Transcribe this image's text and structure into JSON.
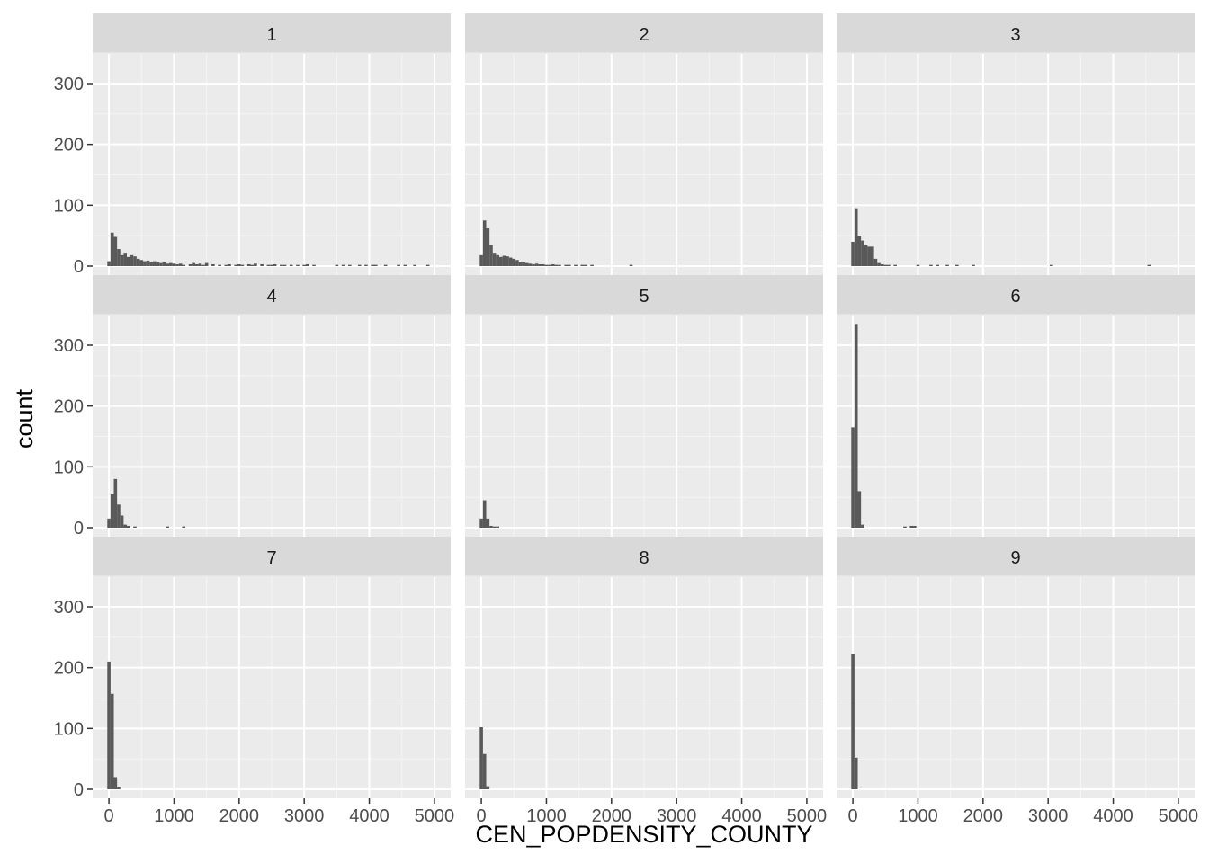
{
  "chart_data": {
    "type": "bar",
    "subtype": "faceted-histogram",
    "xlabel": "CEN_POPDENSITY_COUNTY",
    "ylabel": "count",
    "xlim": [
      -250,
      5250
    ],
    "ylim": [
      0,
      400
    ],
    "x_ticks": [
      0,
      1000,
      2000,
      3000,
      4000,
      5000
    ],
    "x_tick_labels": [
      "0",
      "1000",
      "2000",
      "3000",
      "4000",
      "5000"
    ],
    "y_ticks": [
      0,
      100,
      200,
      300
    ],
    "y_tick_labels": [
      "0",
      "100",
      "200",
      "300"
    ],
    "bin_width": 50,
    "grid": true,
    "colors": {
      "panel_bg": "#ebebeb",
      "grid_major": "#ffffff",
      "strip_bg": "#d9d9d9",
      "bar_fill": "#595959"
    },
    "facets": [
      {
        "label": "1",
        "bins": [
          [
            0,
            8
          ],
          [
            50,
            55
          ],
          [
            100,
            48
          ],
          [
            150,
            28
          ],
          [
            200,
            18
          ],
          [
            250,
            22
          ],
          [
            300,
            15
          ],
          [
            350,
            18
          ],
          [
            400,
            16
          ],
          [
            450,
            12
          ],
          [
            500,
            10
          ],
          [
            550,
            8
          ],
          [
            600,
            9
          ],
          [
            650,
            7
          ],
          [
            700,
            8
          ],
          [
            750,
            6
          ],
          [
            800,
            5
          ],
          [
            850,
            6
          ],
          [
            900,
            4
          ],
          [
            950,
            5
          ],
          [
            1000,
            4
          ],
          [
            1050,
            3
          ],
          [
            1100,
            4
          ],
          [
            1150,
            2
          ],
          [
            1250,
            3
          ],
          [
            1300,
            5
          ],
          [
            1350,
            3
          ],
          [
            1400,
            4
          ],
          [
            1450,
            2
          ],
          [
            1500,
            5
          ],
          [
            1600,
            3
          ],
          [
            1700,
            2
          ],
          [
            1800,
            2
          ],
          [
            1850,
            3
          ],
          [
            1950,
            2
          ],
          [
            2000,
            3
          ],
          [
            2050,
            2
          ],
          [
            2150,
            3
          ],
          [
            2200,
            2
          ],
          [
            2250,
            4
          ],
          [
            2350,
            3
          ],
          [
            2450,
            2
          ],
          [
            2500,
            2
          ],
          [
            2550,
            3
          ],
          [
            2650,
            2
          ],
          [
            2700,
            2
          ],
          [
            2800,
            2
          ],
          [
            2900,
            2
          ],
          [
            3000,
            2
          ],
          [
            3050,
            3
          ],
          [
            3150,
            2
          ],
          [
            3500,
            2
          ],
          [
            3600,
            2
          ],
          [
            3700,
            2
          ],
          [
            3850,
            2
          ],
          [
            3950,
            2
          ],
          [
            4050,
            2
          ],
          [
            4100,
            2
          ],
          [
            4250,
            2
          ],
          [
            4450,
            2
          ],
          [
            4550,
            2
          ],
          [
            4700,
            2
          ],
          [
            4900,
            2
          ]
        ]
      },
      {
        "label": "2",
        "bins": [
          [
            0,
            18
          ],
          [
            50,
            75
          ],
          [
            100,
            62
          ],
          [
            150,
            35
          ],
          [
            200,
            22
          ],
          [
            250,
            18
          ],
          [
            300,
            15
          ],
          [
            350,
            17
          ],
          [
            400,
            16
          ],
          [
            450,
            14
          ],
          [
            500,
            12
          ],
          [
            550,
            10
          ],
          [
            600,
            7
          ],
          [
            650,
            6
          ],
          [
            700,
            5
          ],
          [
            750,
            4
          ],
          [
            800,
            3
          ],
          [
            850,
            4
          ],
          [
            900,
            3
          ],
          [
            950,
            3
          ],
          [
            1000,
            2
          ],
          [
            1050,
            2
          ],
          [
            1100,
            3
          ],
          [
            1150,
            2
          ],
          [
            1200,
            2
          ],
          [
            1300,
            2
          ],
          [
            1350,
            2
          ],
          [
            1450,
            2
          ],
          [
            1550,
            2
          ],
          [
            1600,
            2
          ],
          [
            1700,
            2
          ],
          [
            2300,
            2
          ]
        ]
      },
      {
        "label": "3",
        "bins": [
          [
            0,
            40
          ],
          [
            50,
            95
          ],
          [
            100,
            50
          ],
          [
            150,
            42
          ],
          [
            200,
            35
          ],
          [
            250,
            32
          ],
          [
            300,
            32
          ],
          [
            350,
            12
          ],
          [
            400,
            5
          ],
          [
            450,
            3
          ],
          [
            500,
            2
          ],
          [
            550,
            2
          ],
          [
            650,
            2
          ],
          [
            1000,
            2
          ],
          [
            1200,
            2
          ],
          [
            1300,
            2
          ],
          [
            1450,
            2
          ],
          [
            1600,
            2
          ],
          [
            1850,
            2
          ],
          [
            3050,
            2
          ],
          [
            4550,
            2
          ]
        ]
      },
      {
        "label": "4",
        "bins": [
          [
            0,
            15
          ],
          [
            50,
            55
          ],
          [
            100,
            80
          ],
          [
            150,
            38
          ],
          [
            200,
            20
          ],
          [
            250,
            5
          ],
          [
            300,
            3
          ],
          [
            400,
            2
          ],
          [
            900,
            2
          ],
          [
            1150,
            2
          ]
        ]
      },
      {
        "label": "5",
        "bins": [
          [
            0,
            15
          ],
          [
            50,
            45
          ],
          [
            100,
            15
          ],
          [
            150,
            3
          ],
          [
            200,
            2
          ],
          [
            250,
            2
          ]
        ]
      },
      {
        "label": "6",
        "bins": [
          [
            0,
            165
          ],
          [
            50,
            335
          ],
          [
            100,
            60
          ],
          [
            150,
            5
          ],
          [
            800,
            2
          ],
          [
            900,
            3
          ],
          [
            950,
            3
          ]
        ]
      },
      {
        "label": "7",
        "bins": [
          [
            0,
            210
          ],
          [
            50,
            157
          ],
          [
            100,
            20
          ],
          [
            150,
            3
          ]
        ]
      },
      {
        "label": "8",
        "bins": [
          [
            0,
            102
          ],
          [
            50,
            58
          ],
          [
            100,
            5
          ]
        ]
      },
      {
        "label": "9",
        "bins": [
          [
            0,
            222
          ],
          [
            50,
            52
          ]
        ]
      }
    ]
  }
}
